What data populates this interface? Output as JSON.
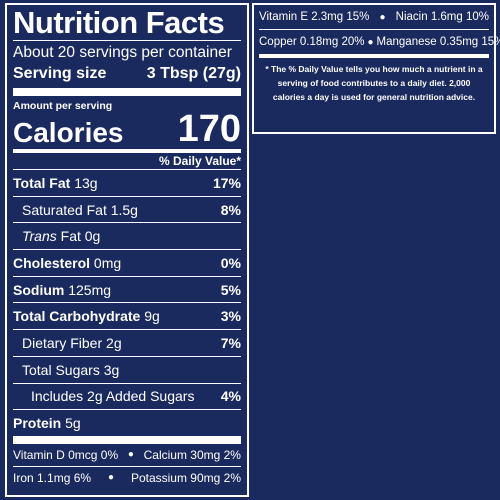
{
  "label": {
    "title": "Nutrition Facts",
    "servings_per_container": "About 20 servings per container",
    "serving_size_label": "Serving size",
    "serving_size_value": "3 Tbsp (27g)",
    "amount_per_serving": "Amount per serving",
    "calories_label": "Calories",
    "calories_value": "170",
    "dv_header": "% Daily Value*",
    "nutrients": [
      {
        "name": "Total Fat",
        "amount": "13g",
        "dv": "17%"
      },
      {
        "name": "Saturated Fat",
        "amount": "1.5g",
        "dv": "8%"
      },
      {
        "name": "Trans",
        "name_rest": "Fat",
        "amount": "0g",
        "dv": ""
      },
      {
        "name": "Cholesterol",
        "amount": "0mg",
        "dv": "0%"
      },
      {
        "name": "Sodium",
        "amount": "125mg",
        "dv": "5%"
      },
      {
        "name": "Total Carbohydrate",
        "amount": "9g",
        "dv": "3%"
      },
      {
        "name": "Dietary Fiber",
        "amount": "2g",
        "dv": "7%"
      },
      {
        "name": "Total Sugars",
        "amount": "3g",
        "dv": ""
      },
      {
        "name": "Includes 2g Added Sugars",
        "amount": "",
        "dv": "4%"
      },
      {
        "name": "Protein",
        "amount": "5g",
        "dv": ""
      }
    ],
    "vitamins_left": [
      {
        "a": "Vitamin D 0mcg 0%",
        "b": "Calcium 30mg 2%"
      },
      {
        "a": "Iron 1.1mg 6%",
        "b": "Potassium 90mg 2%"
      }
    ],
    "vitamins_right": [
      {
        "a": "Vitamin E 2.3mg 15%",
        "b": "Niacin 1.6mg 10%"
      },
      {
        "a": "Copper 0.18mg 20%",
        "b": "Manganese 0.35mg 15%"
      }
    ],
    "footnote": "* The % Daily Value tells you how much a nutrient in a serving of food contributes to a daily diet. 2,000 calories a day is used for general nutrition advice.",
    "bullet": "●"
  },
  "colors": {
    "background": "#1b2a5e",
    "foreground": "#ffffff"
  }
}
